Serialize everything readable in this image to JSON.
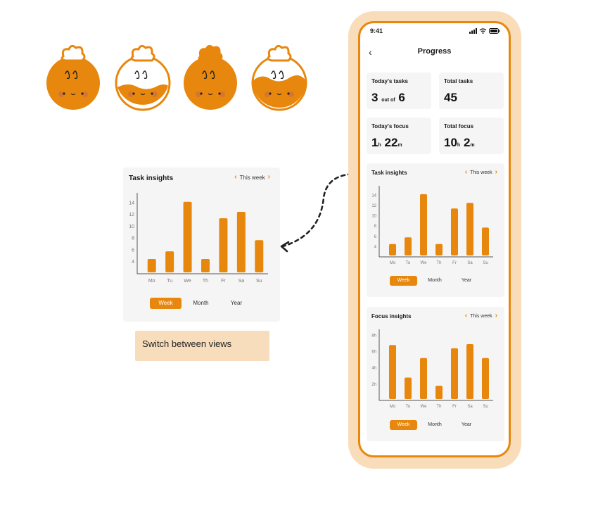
{
  "colors": {
    "accent": "#e8870d",
    "accent_light": "#f9ddbb",
    "card_bg": "#f5f5f5"
  },
  "mascots": [
    "seed-mascot-full",
    "seed-mascot-low",
    "seed-mascot-leaf",
    "seed-mascot-half"
  ],
  "zoom": {
    "title": "Task insights",
    "period": "This week",
    "tabs": [
      "Week",
      "Month",
      "Year"
    ],
    "active_tab": "Week"
  },
  "note": {
    "text": "Switch between views"
  },
  "phone": {
    "status_time": "9:41",
    "title": "Progress",
    "stats": {
      "today_tasks": {
        "label": "Today's tasks",
        "done": "3",
        "mid": "out of",
        "total": "6"
      },
      "total_tasks": {
        "label": "Total tasks",
        "value": "45"
      },
      "today_focus": {
        "label": "Today's focus",
        "h": "1",
        "h_unit": "h",
        "m": "22",
        "m_unit": "m"
      },
      "total_focus": {
        "label": "Total focus",
        "h": "10",
        "h_unit": "h",
        "m": "2",
        "m_unit": "m"
      }
    },
    "task_card": {
      "title": "Task insights",
      "period": "This week",
      "tabs": [
        "Week",
        "Month",
        "Year"
      ],
      "active_tab": "Week"
    },
    "focus_card": {
      "title": "Focus insights",
      "period": "This week",
      "tabs": [
        "Week",
        "Month",
        "Year"
      ],
      "active_tab": "Week"
    }
  },
  "chart_data": [
    {
      "type": "bar",
      "title": "Task insights",
      "categories": [
        "Mo",
        "Tu",
        "We",
        "Th",
        "Fr",
        "Sa",
        "Su"
      ],
      "values": [
        4.5,
        5.8,
        14.2,
        4.5,
        11.4,
        12.5,
        7.7
      ],
      "yticks": [
        "4",
        "6",
        "8",
        "10",
        "12",
        "14"
      ],
      "ylim": [
        2,
        15
      ],
      "grid": false
    },
    {
      "type": "bar",
      "title": "Focus insights",
      "categories": [
        "Mo",
        "Tu",
        "We",
        "Th",
        "Fr",
        "Sa",
        "Su"
      ],
      "values": [
        6.8,
        2.8,
        5.2,
        1.8,
        6.4,
        6.9,
        5.2
      ],
      "yticks": [
        "2h",
        "4h",
        "6h",
        "8h"
      ],
      "ylim": [
        0,
        8.2
      ],
      "grid": false
    }
  ]
}
